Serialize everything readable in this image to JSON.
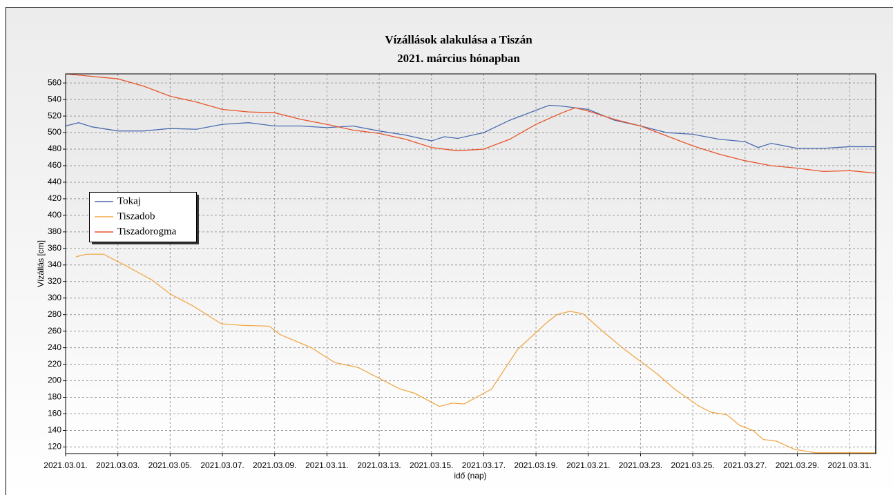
{
  "chart_data": {
    "type": "line",
    "title": [
      "Vízállások alakulása a Tiszán",
      "2021. március hónapban"
    ],
    "xlabel": "idő (nap)",
    "ylabel": "Vízállás [cm]",
    "xlim": [
      1,
      32
    ],
    "ylim": [
      112,
      571
    ],
    "xticks": [
      {
        "value": 1,
        "label": "2021.03.01."
      },
      {
        "value": 3,
        "label": "2021.03.03."
      },
      {
        "value": 5,
        "label": "2021.03.05."
      },
      {
        "value": 7,
        "label": "2021.03.07."
      },
      {
        "value": 9,
        "label": "2021.03.09."
      },
      {
        "value": 11,
        "label": "2021.03.11."
      },
      {
        "value": 13,
        "label": "2021.03.13."
      },
      {
        "value": 15,
        "label": "2021.03.15."
      },
      {
        "value": 17,
        "label": "2021.03.17."
      },
      {
        "value": 19,
        "label": "2021.03.19."
      },
      {
        "value": 21,
        "label": "2021.03.21."
      },
      {
        "value": 23,
        "label": "2021.03.23."
      },
      {
        "value": 25,
        "label": "2021.03.25."
      },
      {
        "value": 27,
        "label": "2021.03.27."
      },
      {
        "value": 29,
        "label": "2021.03.29."
      },
      {
        "value": 31,
        "label": "2021.03.31."
      }
    ],
    "yticks": [
      120,
      140,
      160,
      180,
      200,
      220,
      240,
      260,
      280,
      300,
      320,
      340,
      360,
      380,
      400,
      420,
      440,
      460,
      480,
      500,
      520,
      540,
      560
    ],
    "grid": true,
    "legend": "left",
    "series": [
      {
        "name": "Tokaj",
        "color": "#4a6bb0",
        "x": [
          1,
          1.5,
          2,
          3,
          4,
          5,
          6,
          7,
          8,
          9,
          10,
          11,
          12,
          13,
          14,
          15,
          15.5,
          16,
          17,
          18,
          19,
          19.5,
          20,
          21,
          22,
          23,
          24,
          25,
          26,
          27,
          27.5,
          28,
          29,
          30,
          31,
          32
        ],
        "values": [
          508,
          512,
          507,
          502,
          502,
          505,
          504,
          510,
          512,
          508,
          508,
          506,
          508,
          502,
          497,
          490,
          495,
          493,
          500,
          515,
          527,
          533,
          532,
          528,
          515,
          508,
          500,
          498,
          492,
          489,
          482,
          487,
          481,
          481,
          483,
          483
        ]
      },
      {
        "name": "Tiszadob",
        "color": "#f0a848",
        "x": [
          1.4,
          1.8,
          2.45,
          3.25,
          4.3,
          5,
          5.9,
          6.95,
          7.75,
          8.8,
          9.2,
          10.4,
          11.3,
          12.2,
          13.8,
          14.35,
          15.3,
          15.8,
          16.25,
          17.3,
          18.3,
          19.4,
          19.8,
          20.3,
          20.8,
          21.4,
          22.3,
          23.65,
          24.3,
          25.2,
          25.7,
          26.3,
          26.8,
          27.3,
          27.7,
          28.2,
          28.9,
          29.7,
          32
        ],
        "values": [
          350,
          353,
          353,
          340,
          322,
          305,
          290,
          269,
          267,
          266,
          256,
          240,
          222,
          216,
          190,
          185,
          169,
          173,
          172,
          190,
          238,
          270,
          280,
          284,
          281,
          264,
          240,
          208,
          190,
          170,
          162,
          159,
          146,
          140,
          129,
          127,
          117,
          113,
          113
        ]
      },
      {
        "name": "Tiszadorogma",
        "color": "#e8542a",
        "x": [
          1,
          2,
          3,
          4,
          5,
          6,
          7,
          8,
          9,
          10,
          11,
          12,
          13,
          14,
          15,
          16,
          17,
          18,
          19,
          20,
          20.5,
          21,
          22,
          23,
          24,
          25,
          26,
          27,
          28,
          29,
          30,
          31,
          32
        ],
        "values": [
          571,
          568,
          565,
          556,
          544,
          537,
          528,
          525,
          524,
          516,
          510,
          503,
          499,
          492,
          482,
          478,
          480,
          492,
          510,
          524,
          530,
          526,
          516,
          508,
          496,
          484,
          474,
          466,
          460,
          457,
          453,
          454,
          451
        ]
      }
    ]
  }
}
